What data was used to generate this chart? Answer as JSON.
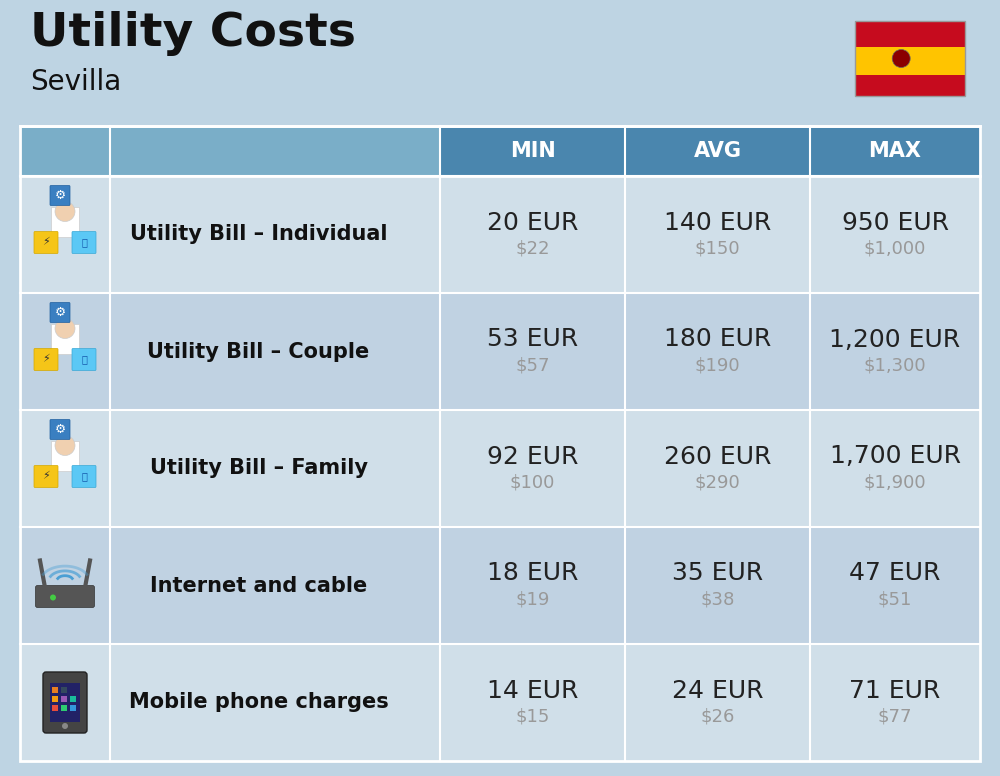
{
  "title": "Utility Costs",
  "subtitle": "Sevilla",
  "background_color": "#bed4e3",
  "header_bg_color": "#4a86ae",
  "header_left_bg": "#7aaec8",
  "header_text_color": "#ffffff",
  "row_colors": [
    "#d0dfe9",
    "#c0d2e2"
  ],
  "col_headers": [
    "MIN",
    "AVG",
    "MAX"
  ],
  "rows": [
    {
      "label": "Utility Bill – Individual",
      "min_eur": "20 EUR",
      "min_usd": "$22",
      "avg_eur": "140 EUR",
      "avg_usd": "$150",
      "max_eur": "950 EUR",
      "max_usd": "$1,000"
    },
    {
      "label": "Utility Bill – Couple",
      "min_eur": "53 EUR",
      "min_usd": "$57",
      "avg_eur": "180 EUR",
      "avg_usd": "$190",
      "max_eur": "1,200 EUR",
      "max_usd": "$1,300"
    },
    {
      "label": "Utility Bill – Family",
      "min_eur": "92 EUR",
      "min_usd": "$100",
      "avg_eur": "260 EUR",
      "avg_usd": "$290",
      "max_eur": "1,700 EUR",
      "max_usd": "$1,900"
    },
    {
      "label": "Internet and cable",
      "min_eur": "18 EUR",
      "min_usd": "$19",
      "avg_eur": "35 EUR",
      "avg_usd": "$38",
      "max_eur": "47 EUR",
      "max_usd": "$51"
    },
    {
      "label": "Mobile phone charges",
      "min_eur": "14 EUR",
      "min_usd": "$15",
      "avg_eur": "24 EUR",
      "avg_usd": "$26",
      "max_eur": "71 EUR",
      "max_usd": "$77"
    }
  ],
  "title_fontsize": 34,
  "subtitle_fontsize": 20,
  "header_fontsize": 15,
  "label_fontsize": 15,
  "value_fontsize": 18,
  "usd_fontsize": 13
}
